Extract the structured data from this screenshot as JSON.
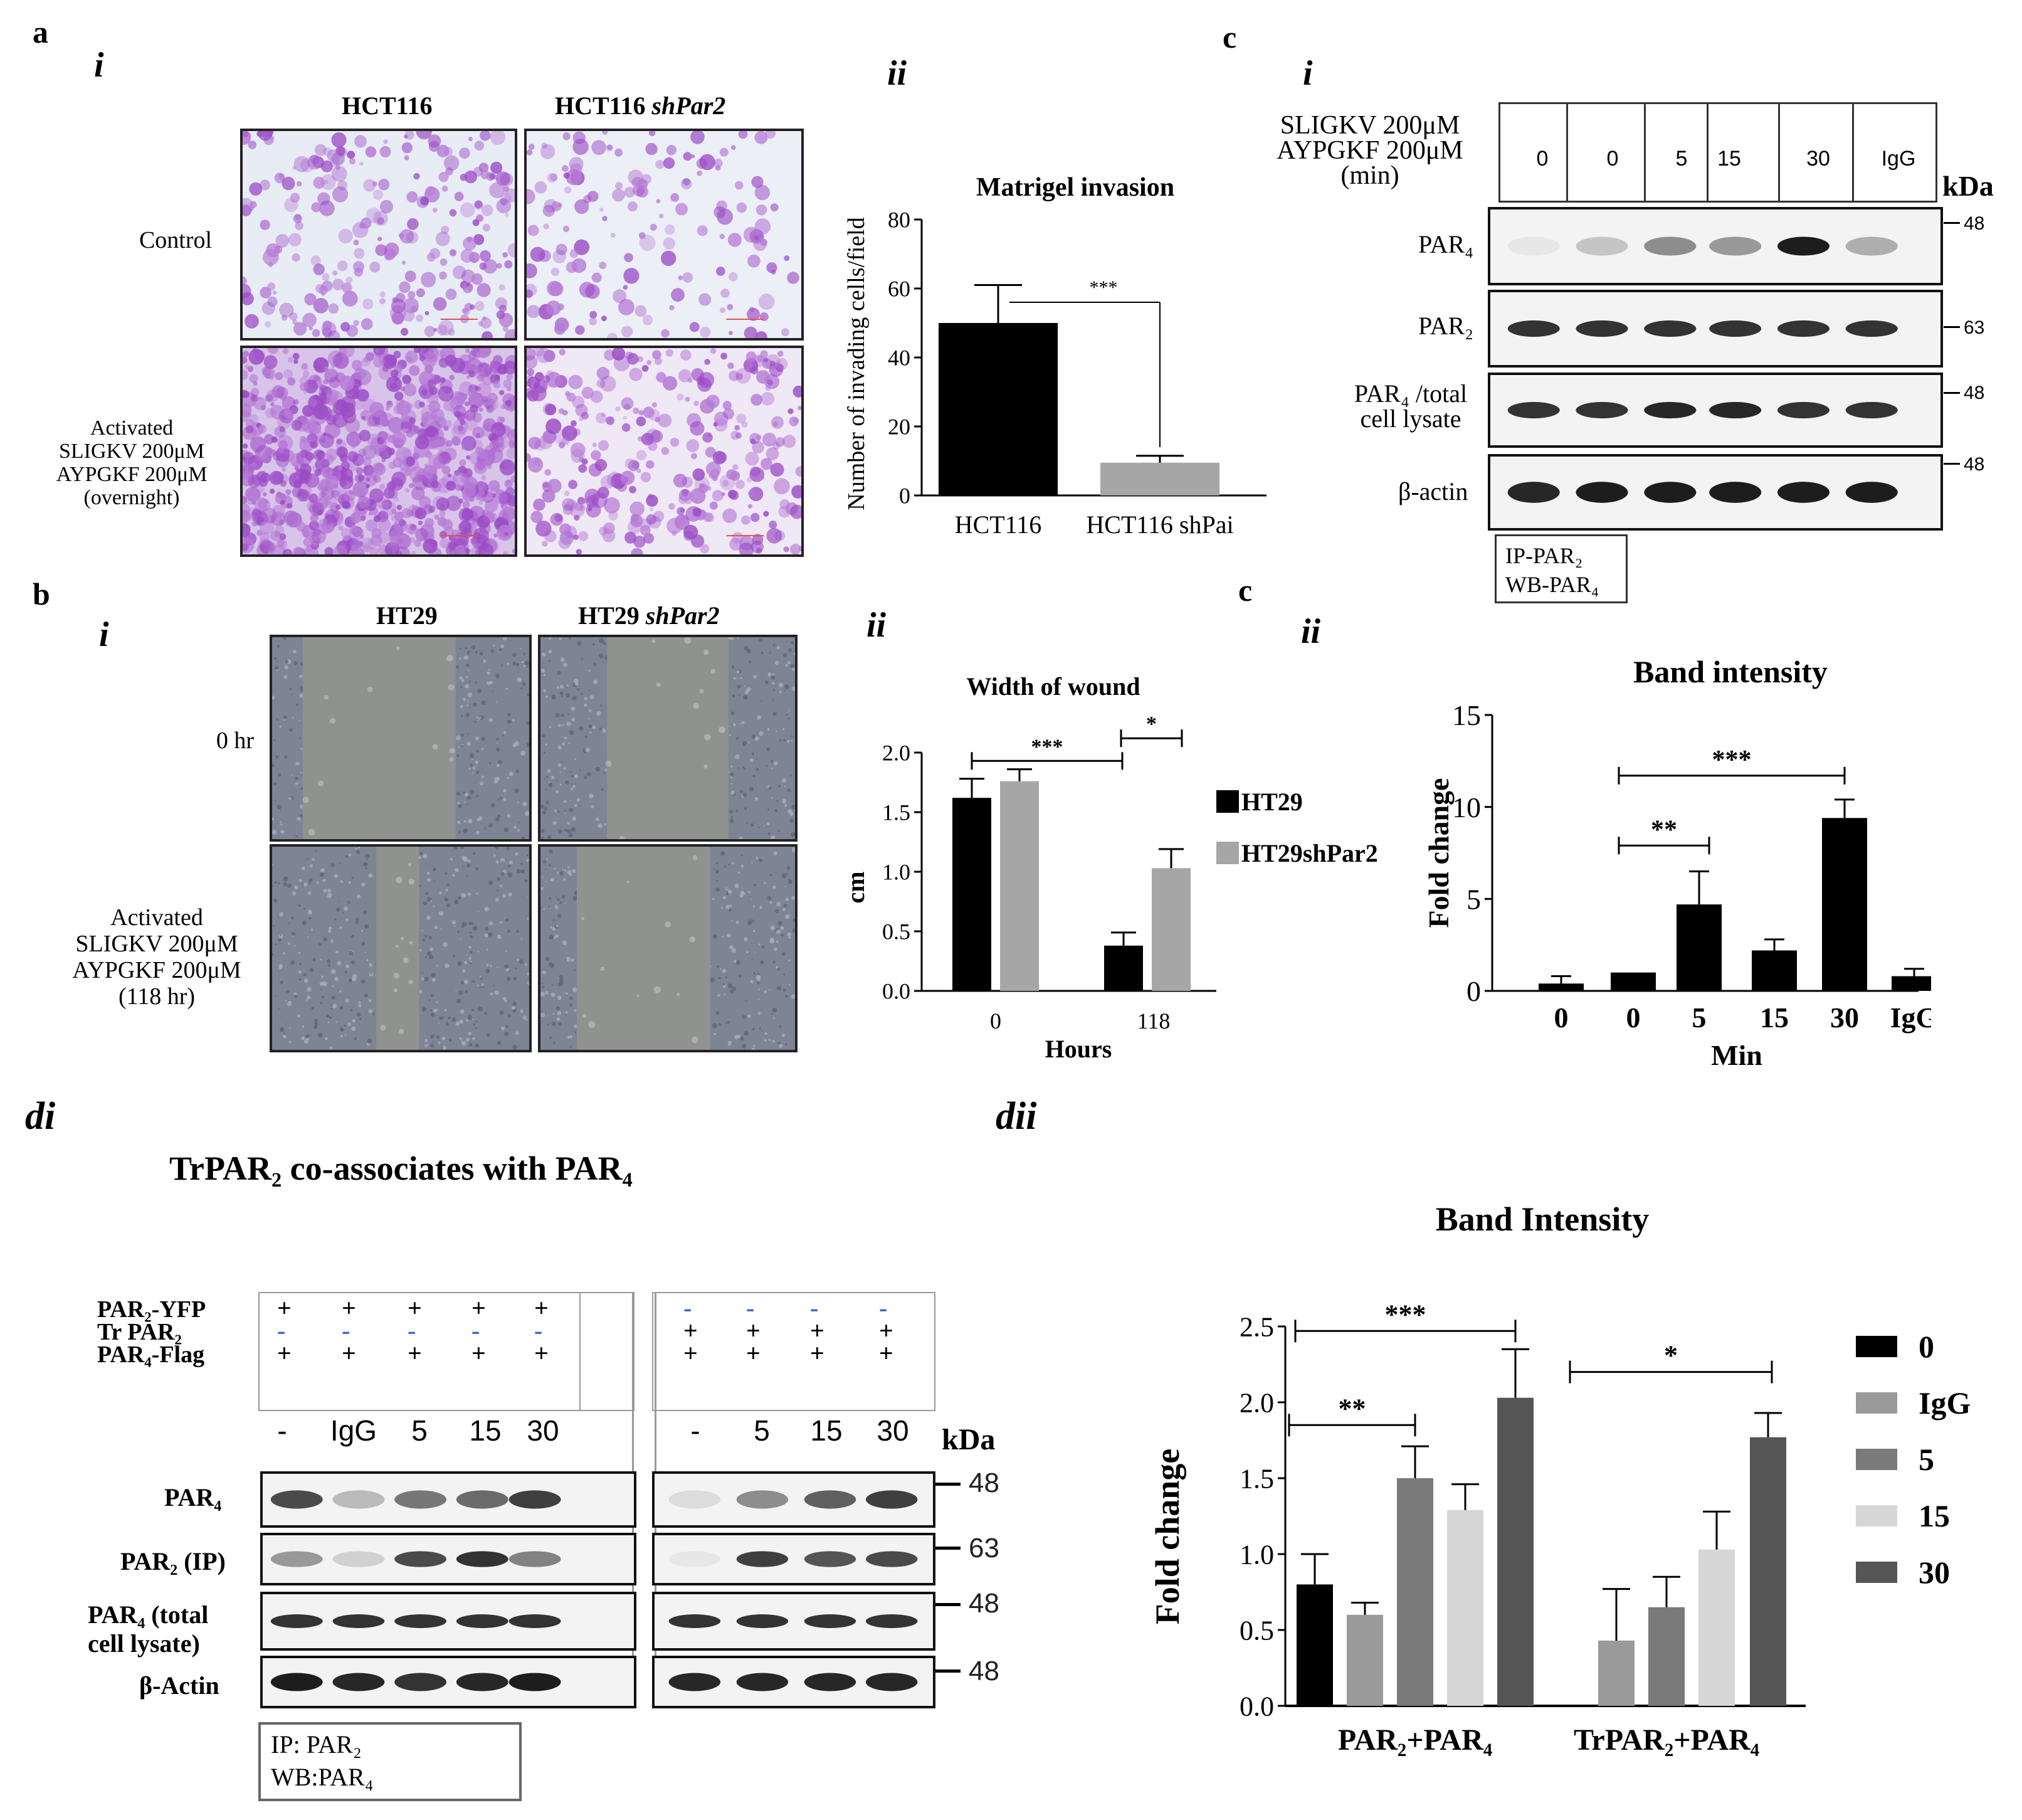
{
  "panel_a": {
    "label": "a",
    "i": {
      "label": "i",
      "col1": "HCT116",
      "col2_prefix": "HCT116 ",
      "col2_italic": "shPar2",
      "row1": "Control",
      "row2_lines": [
        "Activated",
        "SLIGKV 200μM",
        "AYPGKF 200μM",
        "(overnight)"
      ]
    },
    "ii": {
      "label": "ii"
    }
  },
  "panel_b": {
    "label": "b",
    "i": {
      "label": "i",
      "col1": "HT29",
      "col2_prefix": "HT29 ",
      "col2_italic": "shPar2",
      "row1": "0 hr",
      "row2_lines": [
        "Activated",
        "SLIGKV 200μM",
        "AYPGKF 200μM",
        "(118 hr)"
      ]
    },
    "ii": {
      "label": "ii"
    }
  },
  "panel_c": {
    "label": "c",
    "i": {
      "label": "i",
      "treat_lines": [
        "SLIGKV 200μM",
        "AYPGKF 200μM",
        "(min)"
      ],
      "lanes": [
        "0",
        "0",
        "5",
        "15",
        "30",
        "IgG"
      ],
      "kda": "kDa",
      "rows": [
        {
          "label": "PAR₄",
          "kda": "48"
        },
        {
          "label": "PAR₂",
          "kda": "63"
        },
        {
          "label": "PAR₄ /total cell lysate",
          "kda": "48"
        },
        {
          "label": "β-actin",
          "kda": "48"
        }
      ],
      "ip_box": [
        "IP-PAR₂",
        "WB-PAR₄"
      ]
    },
    "ii_label": "c",
    "ii": {
      "label": "ii"
    }
  },
  "panel_d": {
    "di": {
      "label": "di",
      "title": "TrPAR₂  co-associates with  PAR₄",
      "conditions": [
        {
          "label": "PAR₂-YFP",
          "left": [
            "+",
            "+",
            "+",
            "+",
            "+"
          ],
          "right": [
            "-",
            "-",
            "-",
            "-"
          ]
        },
        {
          "label": "Tr PAR₂",
          "left": [
            "-",
            "-",
            "-",
            "-",
            "-"
          ],
          "right": [
            "+",
            "+",
            "+",
            "+"
          ]
        },
        {
          "label": "PAR₄-Flag",
          "left": [
            "+",
            "+",
            "+",
            "+",
            "+"
          ],
          "right": [
            "+",
            "+",
            "+",
            "+"
          ]
        }
      ],
      "lanes_left": [
        "-",
        "IgG",
        "5",
        "15",
        "30"
      ],
      "lanes_right": [
        "-",
        "5",
        "15",
        "30"
      ],
      "kda": "kDa",
      "rows": [
        {
          "label": "PAR₄",
          "kda": "48"
        },
        {
          "label": "PAR₂ (IP)",
          "kda": "63"
        },
        {
          "label": "PAR₄ (total cell lysate)",
          "kda": "48"
        },
        {
          "label": "β-Actin",
          "kda": "48"
        }
      ],
      "ip_box": [
        "IP: PAR₂",
        "WB:PAR₄"
      ]
    },
    "dii": {
      "label": "dii"
    }
  },
  "chart_data": [
    {
      "id": "a-ii",
      "type": "bar",
      "title": "Matrigel invasion",
      "ylabel": "Number of invading cells/field",
      "categories": [
        "HCT116",
        "HCT116 shPar2"
      ],
      "category_display": [
        "HCT116",
        "HCT116 shPai"
      ],
      "values": [
        50,
        9.5
      ],
      "errors": [
        11,
        2
      ],
      "colors": [
        "#000000",
        "#a6a6a6"
      ],
      "ylim": [
        0,
        80
      ],
      "yticks": [
        0,
        20,
        40,
        60,
        80
      ],
      "significance": [
        {
          "between": [
            0,
            1
          ],
          "label": "***"
        }
      ]
    },
    {
      "id": "b-ii",
      "type": "bar",
      "title": "Width of wound",
      "xlabel": "Hours",
      "ylabel": "cm",
      "categories": [
        "0",
        "118"
      ],
      "series": [
        {
          "name": "HT29",
          "values": [
            1.62,
            0.38
          ],
          "errors": [
            0.16,
            0.11
          ],
          "color": "#000000"
        },
        {
          "name": "HT29shPar2",
          "values": [
            1.76,
            1.03
          ],
          "errors": [
            0.1,
            0.16
          ],
          "color": "#a6a6a6"
        }
      ],
      "ylim": [
        0,
        2.0
      ],
      "yticks": [
        "0.0",
        "0.5",
        "1.0",
        "1.5",
        "2.0"
      ],
      "legend": "right",
      "significance": [
        {
          "label": "***"
        },
        {
          "label": "*"
        }
      ]
    },
    {
      "id": "c-ii",
      "type": "bar",
      "title": "Band intensity",
      "xlabel": "Min",
      "ylabel": "Fold change",
      "categories": [
        "0",
        "0",
        "5",
        "15",
        "30",
        "IgG"
      ],
      "values": [
        0.4,
        1.0,
        4.7,
        2.2,
        9.4,
        0.8
      ],
      "errors": [
        0.4,
        0.0,
        1.8,
        0.6,
        1.0,
        0.4
      ],
      "ylim": [
        0,
        15
      ],
      "yticks": [
        0,
        5,
        10,
        15
      ],
      "significance": [
        {
          "between": [
            1,
            2
          ],
          "label": "**"
        },
        {
          "between": [
            1,
            4
          ],
          "label": "***"
        }
      ]
    },
    {
      "id": "d-ii",
      "type": "bar",
      "title": "Band Intensity",
      "ylabel": "Fold change",
      "categories": [
        "PAR₂+PAR₄",
        "TrPAR₂+PAR₄"
      ],
      "series": [
        {
          "name": "0",
          "values": [
            0.8,
            0.0
          ],
          "errors": [
            0.2,
            0.0
          ],
          "color": "#000000"
        },
        {
          "name": "IgG",
          "values": [
            0.6,
            0.43
          ],
          "errors": [
            0.08,
            0.34
          ],
          "color": "#9a9a9a"
        },
        {
          "name": "5",
          "values": [
            1.5,
            0.65
          ],
          "errors": [
            0.21,
            0.2
          ],
          "color": "#7a7a7a"
        },
        {
          "name": "15",
          "values": [
            1.29,
            1.03
          ],
          "errors": [
            0.17,
            0.25
          ],
          "color": "#d6d6d6"
        },
        {
          "name": "30",
          "values": [
            2.03,
            1.77
          ],
          "errors": [
            0.32,
            0.16
          ],
          "color": "#555555"
        }
      ],
      "ylim": [
        0,
        2.5
      ],
      "yticks": [
        "0.0",
        "0.5",
        "1.0",
        "1.5",
        "2.0",
        "2.5"
      ],
      "legend": "right",
      "significance": [
        {
          "label": "**"
        },
        {
          "label": "***"
        },
        {
          "label": "*"
        }
      ]
    }
  ]
}
